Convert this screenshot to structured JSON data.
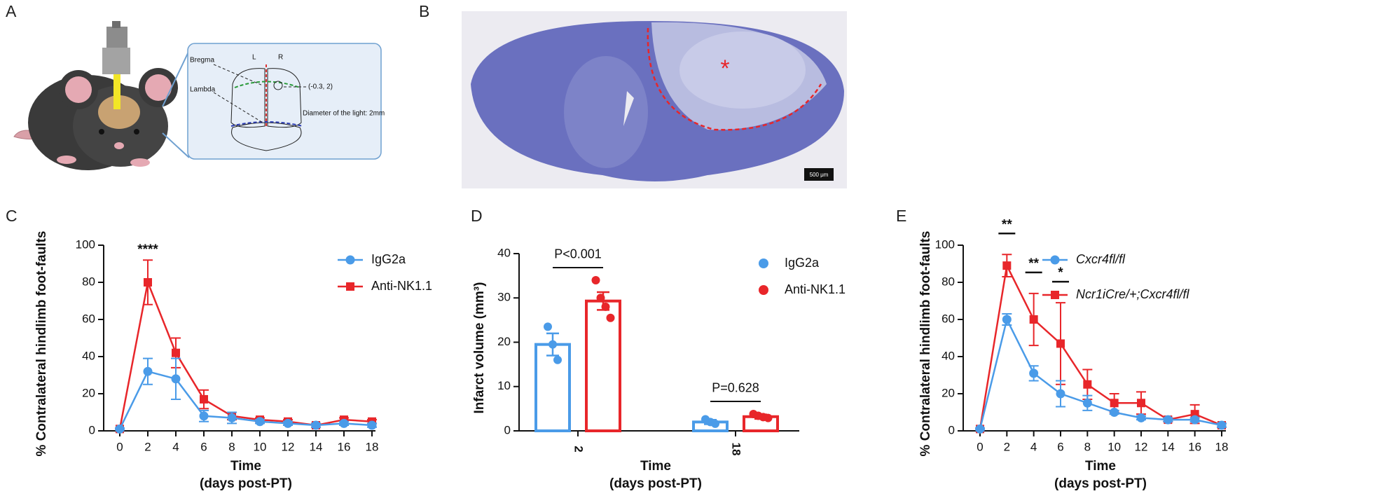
{
  "panel_labels": [
    "A",
    "B",
    "C",
    "D",
    "E"
  ],
  "illustration": {
    "bregma": "Bregma",
    "lambda": "Lambda",
    "left": "L",
    "right": "R",
    "target": "(-0.3, 2)",
    "diameter": "Diameter of the light: 2mm"
  },
  "micrograph": {
    "marker": "*",
    "scale_bar": "500 μm"
  },
  "chart_data": [
    {
      "type": "line",
      "ylabel": "% Contralateral hindlimb foot-faults",
      "xlabel": "Time",
      "xlabel_sub": "(days post-PT)",
      "x": [
        0,
        2,
        4,
        6,
        8,
        10,
        12,
        14,
        16,
        18
      ],
      "xlim": [
        0,
        18
      ],
      "xticks": [
        0,
        2,
        4,
        6,
        8,
        10,
        12,
        14,
        16,
        18
      ],
      "ylim": [
        0,
        100
      ],
      "yticks": [
        0,
        20,
        40,
        60,
        80,
        100
      ],
      "series": [
        {
          "name": "IgG2a",
          "color": "#4a9be8",
          "marker": "circle",
          "values": [
            1,
            32,
            28,
            8,
            7,
            5,
            4,
            3,
            4,
            3
          ],
          "errors": [
            0.5,
            7,
            11,
            3,
            3,
            1,
            1,
            1,
            1,
            1
          ]
        },
        {
          "name": "Anti-NK1.1",
          "color": "#e8262a",
          "marker": "square",
          "values": [
            1,
            80,
            42,
            17,
            8,
            6,
            5,
            3,
            6,
            5
          ],
          "errors": [
            0.5,
            12,
            8,
            5,
            2,
            1,
            1,
            1,
            1,
            1
          ]
        }
      ],
      "annotations": [
        {
          "text": "****",
          "x": 2
        }
      ]
    },
    {
      "type": "bar",
      "ylabel": "Infarct volume (mm³)",
      "xlabel": "Time",
      "xlabel_sub": "(days post-PT)",
      "categories": [
        "2",
        "18"
      ],
      "ylim": [
        0,
        40
      ],
      "yticks": [
        0,
        10,
        20,
        30,
        40
      ],
      "series": [
        {
          "name": "IgG2a",
          "color": "#4a9be8",
          "values": [
            19.5,
            2
          ],
          "errors": [
            2.5,
            0.5
          ],
          "points": [
            [
              23.5,
              19.5,
              16
            ],
            [
              2.6,
              2,
              1.6
            ]
          ]
        },
        {
          "name": "Anti-NK1.1",
          "color": "#e8262a",
          "values": [
            29.3,
            3.2
          ],
          "errors": [
            2,
            0.5
          ],
          "points": [
            [
              34,
              30,
              28,
              25.5
            ],
            [
              3.8,
              3.4,
              3.1,
              2.9
            ]
          ]
        }
      ],
      "annotations": [
        {
          "text": "P<0.001",
          "category": "2"
        },
        {
          "text": "P=0.628",
          "category": "18"
        }
      ]
    },
    {
      "type": "line",
      "ylabel": "% Contralateral hindlimb foot-faults",
      "xlabel": "Time",
      "xlabel_sub": "(days post-PT)",
      "x": [
        0,
        2,
        4,
        6,
        8,
        10,
        12,
        14,
        16,
        18
      ],
      "xlim": [
        0,
        18
      ],
      "xticks": [
        0,
        2,
        4,
        6,
        8,
        10,
        12,
        14,
        16,
        18
      ],
      "ylim": [
        0,
        100
      ],
      "yticks": [
        0,
        20,
        40,
        60,
        80,
        100
      ],
      "series": [
        {
          "name": "Cxcr4fl/fl",
          "color": "#4a9be8",
          "marker": "circle",
          "values": [
            1,
            60,
            31,
            20,
            15,
            10,
            7,
            6,
            6,
            3
          ],
          "errors": [
            0.5,
            3,
            4,
            7,
            4,
            1,
            1,
            1,
            1,
            1
          ]
        },
        {
          "name": "Ncr1iCre/+;Cxcr4fl/fl",
          "color": "#e8262a",
          "marker": "square",
          "values": [
            1,
            89,
            60,
            47,
            25,
            15,
            15,
            6,
            9,
            3
          ],
          "errors": [
            0.5,
            6,
            14,
            22,
            8,
            5,
            6,
            1,
            5,
            1
          ]
        }
      ],
      "annotations": [
        {
          "text": "**",
          "x": 2,
          "bar": true
        },
        {
          "text": "**",
          "x": 4,
          "bar": true
        },
        {
          "text": "*",
          "x": 6,
          "bar": true
        }
      ]
    }
  ]
}
